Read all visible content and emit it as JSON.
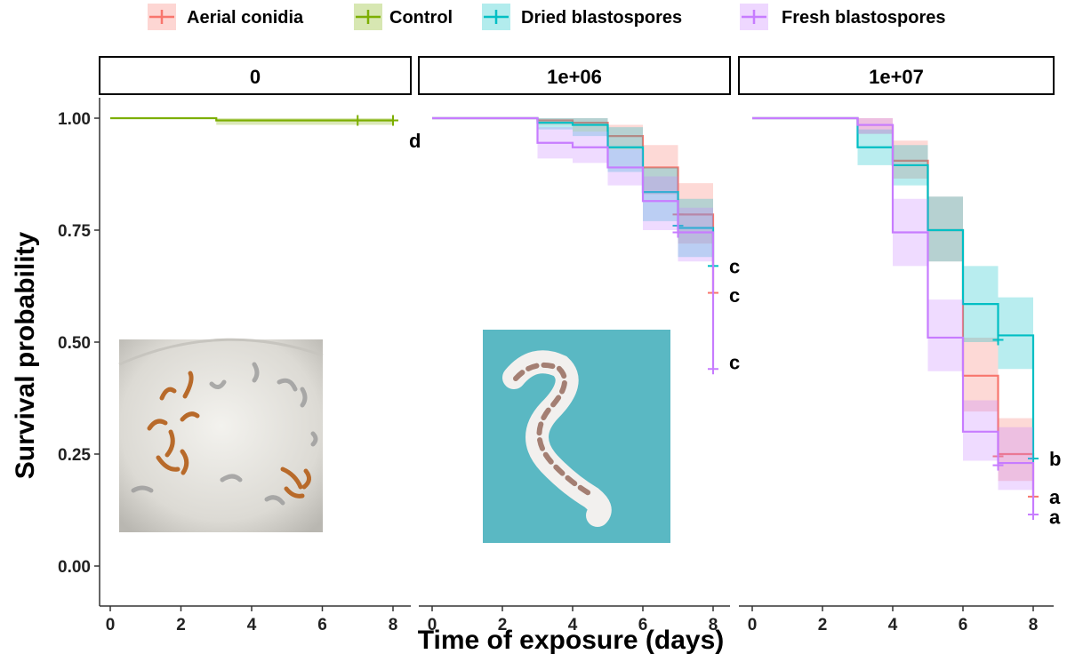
{
  "chart_data": {
    "type": "line",
    "subtype": "kaplan-meier survival curves with confidence bands, faceted",
    "xlabel": "Time of exposure (days)",
    "ylabel": "Survival probability",
    "xlim": [
      0,
      8
    ],
    "ylim": [
      0,
      1
    ],
    "x_ticks": [
      "0",
      "2",
      "4",
      "6",
      "8"
    ],
    "y_ticks": [
      "0.00",
      "0.25",
      "0.50",
      "0.75",
      "1.00"
    ],
    "grid": false,
    "legend": {
      "placement": "top",
      "entries": [
        {
          "name": "Aerial conidia",
          "color": "#F8766D"
        },
        {
          "name": "Control",
          "color": "#7CAE00"
        },
        {
          "name": "Dried blastospores",
          "color": "#00BFC4"
        },
        {
          "name": "Fresh blastospores",
          "color": "#C77CFF"
        }
      ]
    },
    "panels": [
      {
        "label": "0",
        "photo": "mealworm-larvae-photo",
        "series": [
          {
            "name": "Control",
            "color": "#7CAE00",
            "x": [
              0,
              3,
              8
            ],
            "y": [
              1.0,
              0.995,
              0.995
            ],
            "lower": [
              1.0,
              0.985,
              0.985
            ],
            "upper": [
              1.0,
              1.0,
              1.0
            ],
            "censor": [
              [
                7,
                0.995
              ],
              [
                8,
                0.995
              ]
            ],
            "letter": "d",
            "letter_y": 0.95
          }
        ]
      },
      {
        "label": "1e+06",
        "photo": "infected-larva-photo",
        "series": [
          {
            "name": "Aerial conidia",
            "color": "#F8766D",
            "x": [
              0,
              3,
              4,
              5,
              6,
              7,
              8
            ],
            "y": [
              1.0,
              0.995,
              0.99,
              0.96,
              0.89,
              0.785,
              0.61
            ],
            "lower": [
              1.0,
              0.985,
              0.97,
              0.93,
              0.83,
              0.72,
              0.5
            ],
            "upper": [
              1.0,
              1.0,
              1.0,
              0.985,
              0.94,
              0.855,
              0.7
            ],
            "censor": [
              [
                7,
                0.785
              ],
              [
                8,
                0.61
              ]
            ],
            "letter": "c",
            "letter_y": 0.605
          },
          {
            "name": "Dried blastospores",
            "color": "#00BFC4",
            "x": [
              0,
              3,
              4,
              5,
              6,
              7,
              8
            ],
            "y": [
              1.0,
              0.99,
              0.985,
              0.935,
              0.835,
              0.755,
              0.67
            ],
            "lower": [
              1.0,
              0.975,
              0.96,
              0.88,
              0.77,
              0.69,
              0.58
            ],
            "upper": [
              1.0,
              1.0,
              1.0,
              0.98,
              0.89,
              0.82,
              0.75
            ],
            "censor": [
              [
                7,
                0.76
              ],
              [
                8,
                0.67
              ]
            ],
            "letter": "c",
            "letter_y": 0.67
          },
          {
            "name": "Fresh blastospores",
            "color": "#C77CFF",
            "x": [
              0,
              3,
              4,
              5,
              6,
              7,
              8
            ],
            "y": [
              1.0,
              0.945,
              0.935,
              0.89,
              0.815,
              0.745,
              0.44
            ],
            "lower": [
              1.0,
              0.91,
              0.9,
              0.85,
              0.75,
              0.68,
              0.34
            ],
            "upper": [
              1.0,
              0.98,
              0.97,
              0.93,
              0.87,
              0.8,
              0.55
            ],
            "censor": [
              [
                7,
                0.745
              ],
              [
                8,
                0.44
              ]
            ],
            "letter": "c",
            "letter_y": 0.455
          }
        ]
      },
      {
        "label": "1e+07",
        "photo": "",
        "series": [
          {
            "name": "Aerial conidia",
            "color": "#F8766D",
            "x": [
              0,
              3,
              4,
              5,
              6,
              7,
              8
            ],
            "y": [
              1.0,
              0.985,
              0.905,
              0.75,
              0.425,
              0.25,
              0.155
            ],
            "lower": [
              1.0,
              0.965,
              0.865,
              0.68,
              0.345,
              0.19,
              0.1
            ],
            "upper": [
              1.0,
              1.0,
              0.95,
              0.825,
              0.51,
              0.33,
              0.22
            ],
            "censor": [
              [
                7,
                0.245
              ],
              [
                8,
                0.155
              ]
            ],
            "letter": "a",
            "letter_y": 0.155
          },
          {
            "name": "Dried blastospores",
            "color": "#00BFC4",
            "x": [
              0,
              3,
              4,
              5,
              6,
              7,
              8
            ],
            "y": [
              1.0,
              0.935,
              0.895,
              0.75,
              0.585,
              0.515,
              0.24
            ],
            "lower": [
              1.0,
              0.895,
              0.85,
              0.68,
              0.5,
              0.44,
              0.17
            ],
            "upper": [
              1.0,
              0.975,
              0.94,
              0.825,
              0.67,
              0.6,
              0.31
            ],
            "censor": [
              [
                7,
                0.505
              ],
              [
                8,
                0.24
              ]
            ],
            "letter": "b",
            "letter_y": 0.24
          },
          {
            "name": "Fresh blastospores",
            "color": "#C77CFF",
            "x": [
              0,
              3,
              4,
              5,
              6,
              7,
              8
            ],
            "y": [
              1.0,
              0.985,
              0.745,
              0.51,
              0.3,
              0.23,
              0.115
            ],
            "lower": [
              1.0,
              0.965,
              0.67,
              0.435,
              0.235,
              0.17,
              0.065
            ],
            "upper": [
              1.0,
              1.0,
              0.82,
              0.595,
              0.37,
              0.31,
              0.17
            ],
            "censor": [
              [
                7,
                0.225
              ],
              [
                8,
                0.115
              ]
            ],
            "letter": "a",
            "letter_y": 0.11
          }
        ]
      }
    ]
  }
}
